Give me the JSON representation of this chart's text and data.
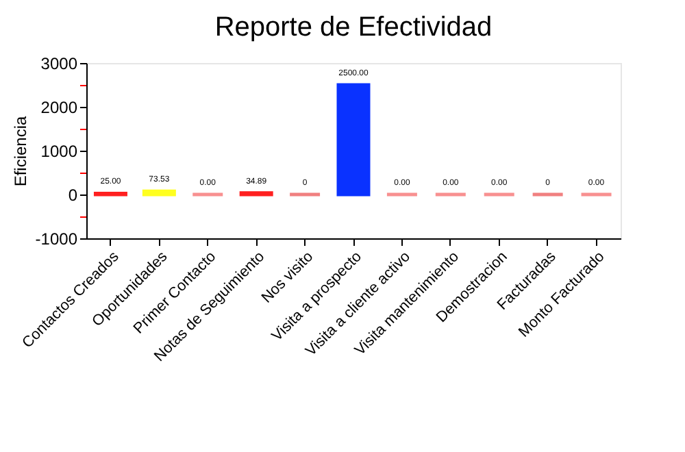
{
  "chart_data": {
    "type": "bar",
    "title": "Reporte de Efectividad",
    "ylabel": "Eficiencia",
    "categories": [
      "Contactos Creados",
      "Oportunidades",
      "Primer Contacto",
      "Notas de Seguimiento",
      "Nos visito",
      "Visita a prospecto",
      "Visita a cliente activo",
      "Visita mantenimiento",
      "Demostracion",
      "Facturadas",
      "Monto Facturado"
    ],
    "values": [
      25,
      73.53,
      0,
      34.89,
      0,
      2500,
      0,
      0,
      0,
      0,
      0
    ],
    "value_labels": [
      "25.00",
      "73.53",
      "0.00",
      "34.89",
      "0",
      "2500.00",
      "0.00",
      "0.00",
      "0.00",
      "0",
      "0.00"
    ],
    "colors": [
      "#ff2020",
      "#ffff20",
      "#f89090",
      "#ff2020",
      "#f08080",
      "#0a32ff",
      "#f89090",
      "#f89090",
      "#f89090",
      "#f08080",
      "#f89090"
    ],
    "ylim": [
      -1000,
      3000
    ],
    "yticks": [
      -1000,
      {
        "value": -500,
        "label": null
      },
      0,
      {
        "value": 500,
        "label": null
      },
      1000,
      {
        "value": 1500,
        "label": null
      },
      2000,
      {
        "value": 2500,
        "label": null
      },
      3000
    ],
    "grid": false
  }
}
